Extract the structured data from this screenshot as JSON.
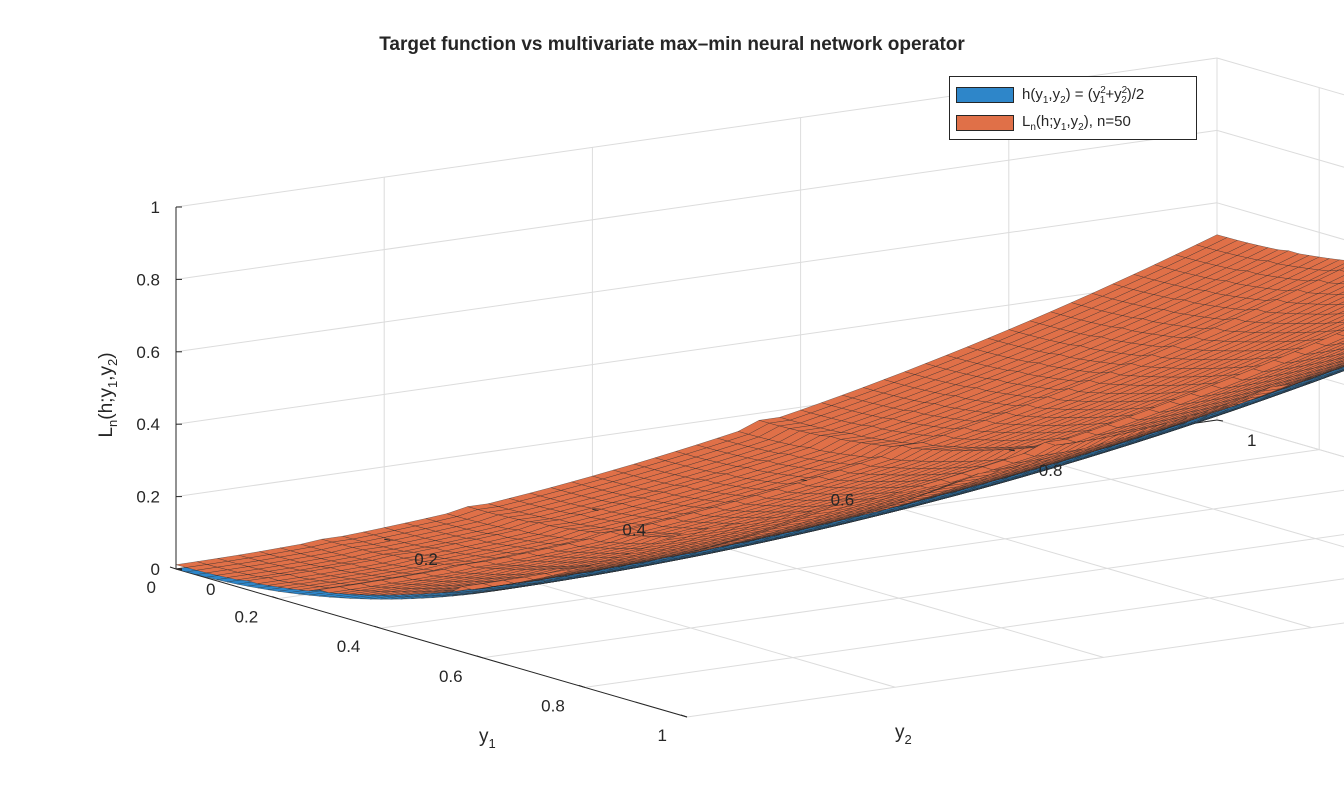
{
  "chart_data": {
    "type": "surface",
    "title": "Target function vs multivariate max–min neural network operator",
    "xlabel": "y",
    "xlabel_sub": "1",
    "ylabel": "y",
    "ylabel_sub": "2",
    "zlabel_main": "L",
    "zlabel_sub_n": "n",
    "zlabel_mid": "(h;y",
    "zlabel_sub_1": "1",
    "zlabel_sep": ",y",
    "zlabel_sub_2": "2",
    "zlabel_end": ")",
    "xlim": [
      0,
      1
    ],
    "ylim": [
      0,
      1
    ],
    "zlim": [
      0,
      1
    ],
    "x_ticks": [
      "0",
      "0.2",
      "0.4",
      "0.6",
      "0.8",
      "1"
    ],
    "y_ticks": [
      "0",
      "0.2",
      "0.4",
      "0.6",
      "0.8",
      "1"
    ],
    "z_ticks": [
      "0",
      "0.2",
      "0.4",
      "0.6",
      "0.8",
      "1"
    ],
    "grid": true,
    "legend_position": "top-right",
    "series": [
      {
        "formula": "(y1^2 + y2^2)/2",
        "grid_points": 50,
        "color": "#2e86c9"
      },
      {
        "formula": "L_n(h; y1, y2)",
        "n": 50,
        "color": "#e07048"
      }
    ],
    "colors": {
      "surface_target": "#2e86c9",
      "surface_operator": "#e07048",
      "mesh_edge": "#262626",
      "grid": "#dcdcdc"
    }
  },
  "legend": {
    "entry1": {
      "h": "h(y",
      "s1": "1",
      "c": ",y",
      "s2": "2",
      "eq": ")  =  (y",
      "sup1": "2",
      "sub1": "1",
      "plus": "+y",
      "sup2": "2",
      "sub2": "2",
      "end": ")/2"
    },
    "entry2": {
      "L": "L",
      "n": "n",
      "mid": "(h;y",
      "s1": "1",
      "c": ",y",
      "s2": "2",
      "end": "),  n=50"
    }
  }
}
